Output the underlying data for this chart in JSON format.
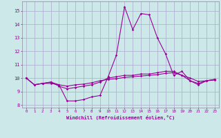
{
  "xlabel": "Windchill (Refroidissement éolien,°C)",
  "background_color": "#cce8e8",
  "grid_color": "#aaaacc",
  "line_color": "#990099",
  "xlim": [
    -0.5,
    23.5
  ],
  "ylim": [
    7.8,
    15.7
  ],
  "yticks": [
    8,
    9,
    10,
    11,
    12,
    13,
    14,
    15
  ],
  "xticks": [
    0,
    1,
    2,
    3,
    4,
    5,
    6,
    7,
    8,
    9,
    10,
    11,
    12,
    13,
    14,
    15,
    16,
    17,
    18,
    19,
    20,
    21,
    22,
    23
  ],
  "line1": [
    10.0,
    9.5,
    9.6,
    9.6,
    9.5,
    8.3,
    8.3,
    8.4,
    8.6,
    8.7,
    10.1,
    11.7,
    15.3,
    13.6,
    14.8,
    14.7,
    13.0,
    11.8,
    10.2,
    10.5,
    9.8,
    9.5,
    9.8,
    9.9
  ],
  "line2": [
    10.0,
    9.5,
    9.6,
    9.7,
    9.4,
    9.2,
    9.3,
    9.4,
    9.5,
    9.7,
    10.0,
    10.1,
    10.2,
    10.2,
    10.3,
    10.3,
    10.4,
    10.5,
    10.5,
    10.2,
    9.8,
    9.6,
    9.8,
    9.85
  ],
  "line3": [
    10.0,
    9.5,
    9.6,
    9.7,
    9.5,
    9.4,
    9.5,
    9.55,
    9.65,
    9.8,
    9.9,
    9.95,
    10.05,
    10.1,
    10.15,
    10.2,
    10.25,
    10.35,
    10.4,
    10.2,
    10.0,
    9.75,
    9.8,
    9.9
  ]
}
